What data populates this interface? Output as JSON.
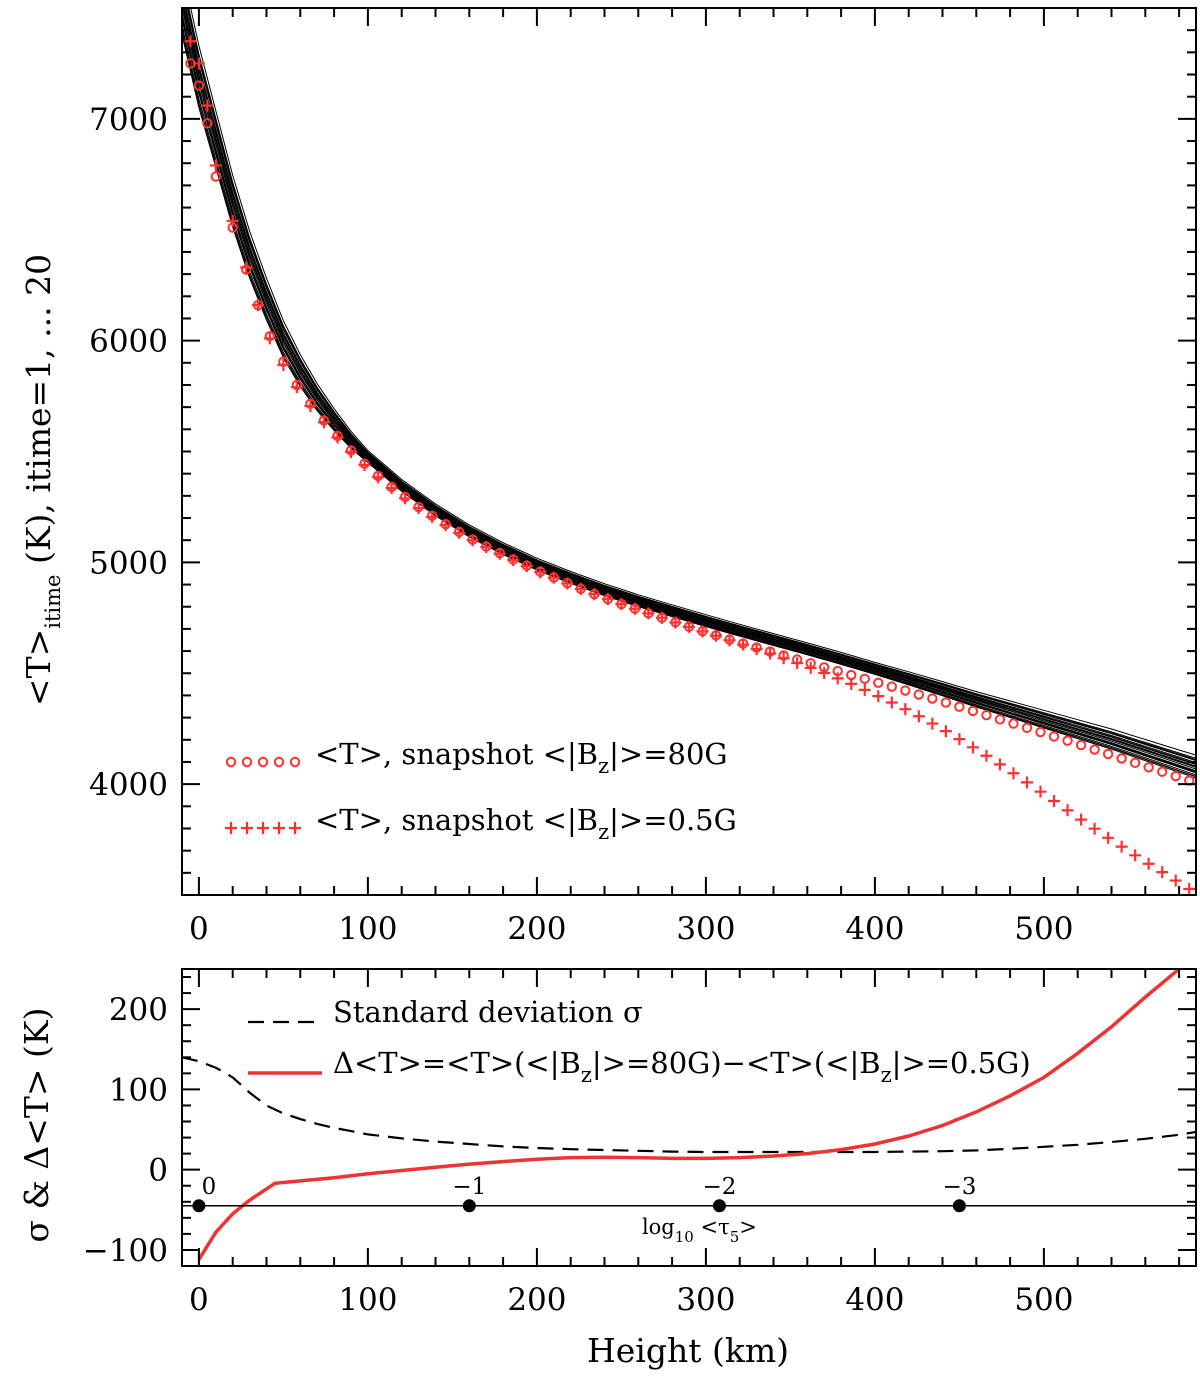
{
  "chart_data": [
    {
      "type": "line",
      "ylabel": "<T>itime (K), itime=1, ... 20",
      "ylabel_parts": {
        "main": "<T>",
        "sub": "itime",
        "rest": " (K), itime=1, ... 20"
      },
      "xlim": [
        -10,
        590
      ],
      "ylim": [
        3500,
        7500
      ],
      "xticks": [
        0,
        100,
        200,
        300,
        400,
        500
      ],
      "yticks": [
        4000,
        5000,
        6000,
        7000
      ],
      "grid": false,
      "legend_position": "bottom-left",
      "colors": {
        "axes": "#000000",
        "snapshot": "#ff3030",
        "ensemble": "#000000"
      },
      "ensemble": {
        "count": 20,
        "x": [
          -10,
          0,
          10,
          20,
          30,
          40,
          50,
          60,
          70,
          80,
          90,
          100,
          120,
          140,
          160,
          180,
          200,
          220,
          240,
          260,
          280,
          300,
          320,
          340,
          360,
          380,
          400,
          420,
          440,
          460,
          480,
          500,
          520,
          540,
          560,
          580,
          590
        ],
        "y_mean": [
          7520,
          7180,
          6900,
          6620,
          6380,
          6180,
          6000,
          5860,
          5740,
          5640,
          5550,
          5475,
          5345,
          5235,
          5140,
          5060,
          4990,
          4930,
          4875,
          4825,
          4780,
          4735,
          4692,
          4650,
          4608,
          4565,
          4520,
          4475,
          4428,
          4380,
          4335,
          4290,
          4245,
          4200,
          4150,
          4100,
          4075
        ],
        "spread_near_surface_K": 140,
        "spread_mid_K": 25,
        "spread_top_K": 48
      },
      "series": [
        {
          "name": "<T>, snapshot <|Bz|>=80G",
          "label_parts": {
            "pre": "<T>, snapshot <|B",
            "sub": "z",
            "post": "|>=80G"
          },
          "marker": "circle",
          "x": [
            -5,
            0,
            5,
            10,
            20,
            28,
            35,
            42,
            50,
            58,
            66,
            74,
            82,
            90,
            98,
            106,
            114,
            122,
            130,
            138,
            146,
            154,
            162,
            170,
            178,
            186,
            194,
            202,
            210,
            218,
            226,
            234,
            242,
            250,
            258,
            266,
            274,
            282,
            290,
            298,
            306,
            314,
            322,
            330,
            338,
            346,
            354,
            362,
            370,
            378,
            386,
            394,
            402,
            410,
            418,
            426,
            434,
            442,
            450,
            458,
            466,
            474,
            482,
            490,
            498,
            506,
            514,
            522,
            530,
            538,
            546,
            554,
            562,
            570,
            578,
            586
          ],
          "y": [
            7250,
            7150,
            6980,
            6740,
            6510,
            6320,
            6160,
            6020,
            5905,
            5800,
            5715,
            5640,
            5570,
            5505,
            5445,
            5390,
            5340,
            5295,
            5250,
            5210,
            5172,
            5137,
            5103,
            5072,
            5042,
            5013,
            4985,
            4958,
            4932,
            4906,
            4881,
            4857,
            4834,
            4812,
            4791,
            4770,
            4750,
            4730,
            4710,
            4690,
            4671,
            4652,
            4634,
            4616,
            4598,
            4580,
            4562,
            4545,
            4527,
            4510,
            4492,
            4475,
            4457,
            4440,
            4422,
            4404,
            4386,
            4368,
            4349,
            4330,
            4311,
            4292,
            4273,
            4254,
            4235,
            4215,
            4196,
            4176,
            4156,
            4136,
            4116,
            4096,
            4076,
            4056,
            4036,
            4016
          ]
        },
        {
          "name": "<T>, snapshot <|Bz|>=0.5G",
          "label_parts": {
            "pre": "<T>, snapshot <|B",
            "sub": "z",
            "post": "|>=0.5G"
          },
          "marker": "plus",
          "x": [
            -5,
            0,
            5,
            10,
            20,
            28,
            35,
            42,
            50,
            58,
            66,
            74,
            82,
            90,
            98,
            106,
            114,
            122,
            130,
            138,
            146,
            154,
            162,
            170,
            178,
            186,
            194,
            202,
            210,
            218,
            226,
            234,
            242,
            250,
            258,
            266,
            274,
            282,
            290,
            298,
            306,
            314,
            322,
            330,
            338,
            346,
            354,
            362,
            370,
            378,
            386,
            394,
            402,
            410,
            418,
            426,
            434,
            442,
            450,
            458,
            466,
            474,
            482,
            490,
            498,
            506,
            514,
            522,
            530,
            538,
            546,
            554,
            562,
            570,
            578,
            586
          ],
          "y": [
            7350,
            7250,
            7060,
            6790,
            6540,
            6330,
            6160,
            6010,
            5890,
            5790,
            5705,
            5632,
            5563,
            5498,
            5439,
            5384,
            5335,
            5289,
            5245,
            5205,
            5168,
            5133,
            5100,
            5069,
            5039,
            5010,
            4983,
            4956,
            4931,
            4905,
            4880,
            4857,
            4834,
            4812,
            4791,
            4770,
            4750,
            4729,
            4709,
            4689,
            4669,
            4649,
            4629,
            4609,
            4589,
            4568,
            4546,
            4524,
            4501,
            4477,
            4452,
            4425,
            4397,
            4368,
            4338,
            4306,
            4273,
            4239,
            4203,
            4166,
            4128,
            4089,
            4049,
            4008,
            3966,
            3924,
            3882,
            3840,
            3799,
            3758,
            3718,
            3679,
            3641,
            3603,
            3565,
            3527
          ]
        }
      ]
    },
    {
      "type": "line",
      "xlabel": "Height (km)",
      "ylabel": "σ & Δ<T> (K)",
      "xlim": [
        -10,
        590
      ],
      "ylim": [
        -120,
        250
      ],
      "xticks": [
        0,
        100,
        200,
        300,
        400,
        500
      ],
      "yticks": [
        -100,
        0,
        100,
        200
      ],
      "grid": false,
      "legend_position": "top-left",
      "series": [
        {
          "name": "Standard deviation σ",
          "style": "dashed",
          "color": "#000000",
          "x": [
            -10,
            0,
            10,
            20,
            30,
            40,
            50,
            60,
            70,
            80,
            90,
            100,
            120,
            140,
            160,
            180,
            200,
            220,
            240,
            260,
            280,
            300,
            320,
            340,
            360,
            380,
            400,
            420,
            440,
            460,
            480,
            500,
            520,
            540,
            560,
            580,
            590
          ],
          "y": [
            140,
            135,
            127,
            115,
            96,
            80,
            70,
            63,
            57,
            52,
            48,
            44,
            39,
            35,
            32,
            29,
            27,
            25.5,
            24.5,
            23.5,
            22.5,
            22,
            22,
            22,
            22,
            22,
            22,
            22.5,
            23,
            24,
            26,
            28.5,
            31,
            34.5,
            38.5,
            43.5,
            47
          ]
        },
        {
          "name": "Δ<T>=<T>(<|Bz|>=80G)−<T>(<|Bz|>=0.5G)",
          "label_parts": {
            "a": "Δ<T>=<T>(<|B",
            "s1": "z",
            "b": "|>=80G)−<T>(<|B",
            "s2": "z",
            "c": "|>=0.5G)"
          },
          "style": "solid",
          "color": "#ee3333",
          "x": [
            0,
            5,
            10,
            20,
            30,
            40,
            45,
            60,
            80,
            100,
            120,
            140,
            160,
            180,
            200,
            220,
            240,
            260,
            280,
            300,
            320,
            340,
            360,
            380,
            400,
            420,
            440,
            460,
            480,
            500,
            520,
            540,
            560,
            580,
            590
          ],
          "y": [
            -112,
            -95,
            -78,
            -55,
            -38,
            -24,
            -17,
            -14,
            -10,
            -5,
            -1,
            3,
            7,
            10,
            13,
            15,
            15.5,
            15,
            14,
            14,
            15,
            17,
            20,
            25,
            32,
            42,
            55,
            72,
            92,
            115,
            145,
            178,
            215,
            250,
            272
          ]
        }
      ],
      "secondary_axis": {
        "label": "log10 <τ5>",
        "label_parts": {
          "a": "log",
          "s1": "10",
          "b": " <τ",
          "s2": "5",
          "c": ">"
        },
        "y_level": -45,
        "ticks": [
          {
            "label": "0",
            "x": 0
          },
          {
            "label": "−1",
            "x": 160
          },
          {
            "label": "−2",
            "x": 308
          },
          {
            "label": "−3",
            "x": 450
          }
        ]
      }
    }
  ]
}
